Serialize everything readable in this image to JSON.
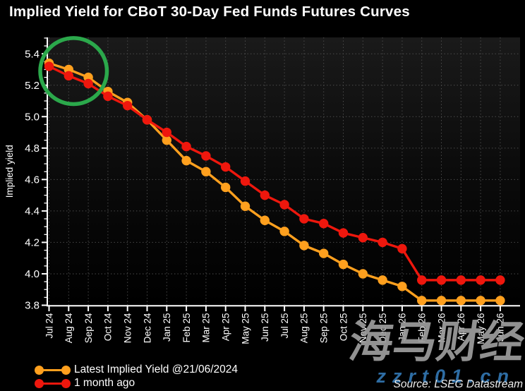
{
  "title": "Implied Yield for CBoT 30-Day Fed Funds Futures Curves",
  "source_credit": "Source: LSEG Datastream",
  "watermarks": {
    "brand_cjk": "海马财经",
    "brand_url": "zzrt01.cn"
  },
  "legend": {
    "items": [
      {
        "label": "Latest Implied Yield @21/06/2024",
        "color": "#FFA01E"
      },
      {
        "label": "1 month ago",
        "color": "#EE170D"
      }
    ]
  },
  "chart_data": {
    "type": "line",
    "title": "Implied Yield for CBoT 30-Day Fed Funds Futures Curves",
    "xlabel": "",
    "ylabel": "Implied yield",
    "ylim": [
      3.8,
      5.4
    ],
    "ytick_major_step": 0.2,
    "ytick_minor_step": 0.05,
    "grid": "dotted horizontal and vertical",
    "grid_color": "#4E4E4E",
    "axis_color": "#FFFFFF",
    "background": "#000000",
    "legend_position": "bottom-left",
    "categories": [
      "Jul 24",
      "Aug 24",
      "Sep 24",
      "Oct 24",
      "Nov 24",
      "Dec 24",
      "Jan 25",
      "Feb 25",
      "Mar 25",
      "Apr 25",
      "May 25",
      "Jun 25",
      "Jul 25",
      "Aug 25",
      "Sep 25",
      "Oct 25",
      "Nov 25",
      "Dec 25",
      "Jan 26",
      "Feb 26",
      "Mar 26",
      "Apr 26",
      "May 26",
      "Jun 26"
    ],
    "series": [
      {
        "name": "Latest Implied Yield @21/06/2024",
        "color": "#FFA01E",
        "marker": "circle",
        "values": [
          5.34,
          5.3,
          5.25,
          5.16,
          5.09,
          4.98,
          4.85,
          4.72,
          4.65,
          4.55,
          4.43,
          4.34,
          4.27,
          4.18,
          4.13,
          4.06,
          4.0,
          3.96,
          3.92,
          3.83,
          3.83,
          3.83,
          3.83,
          3.83
        ]
      },
      {
        "name": "1 month ago",
        "color": "#EE170D",
        "marker": "circle",
        "values": [
          5.32,
          5.26,
          5.21,
          5.13,
          5.07,
          4.98,
          4.9,
          4.81,
          4.75,
          4.68,
          4.59,
          4.5,
          4.44,
          4.35,
          4.32,
          4.26,
          4.23,
          4.2,
          4.16,
          3.96,
          3.96,
          3.96,
          3.96,
          3.96
        ]
      }
    ],
    "annotation": {
      "shape": "ellipse",
      "color": "#2BA84B",
      "x_month_index": 1.25,
      "y_value": 5.29,
      "radius_months": 1.7,
      "radius_yield": 0.21
    }
  }
}
